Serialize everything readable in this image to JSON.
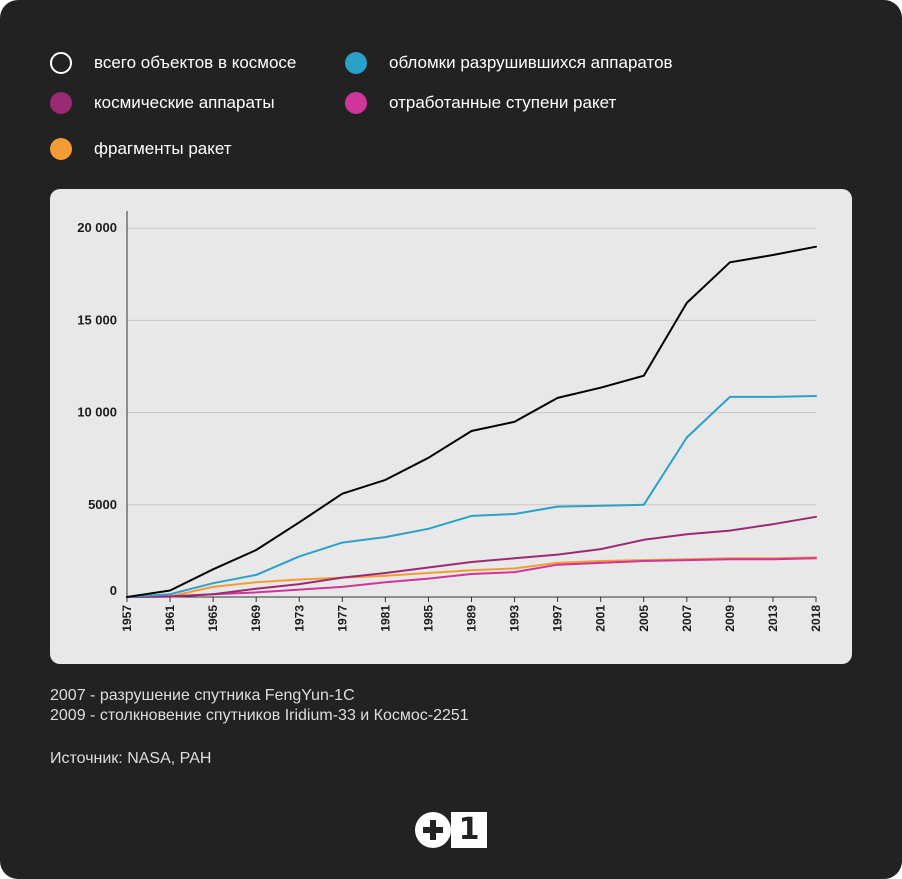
{
  "legend": [
    {
      "label": "всего объектов в космосе",
      "color": "#000000",
      "outline": true
    },
    {
      "label": "обломки разрушившихся аппаратов",
      "color": "#2aa1c8"
    },
    {
      "label": "космические аппараты",
      "color": "#9b2a74"
    },
    {
      "label": "отработанные ступени ракет",
      "color": "#d0359a"
    },
    {
      "label": "фрагменты ракет",
      "color": "#f39c36"
    }
  ],
  "notes": [
    "2007 - разрушение спутника FengYun-1C",
    "2009 - столкновение спутников Iridium-33 и Космос-2251"
  ],
  "source": "Источник: NASA, РАН",
  "logo": {
    "one": "1",
    "icon": "plus-circle-icon"
  },
  "chart_data": {
    "type": "line",
    "x": [
      "1957",
      "1961",
      "1965",
      "1969",
      "1973",
      "1977",
      "1981",
      "1985",
      "1989",
      "1993",
      "1997",
      "2001",
      "2005",
      "2007",
      "2009",
      "2013",
      "2018"
    ],
    "ylim": [
      0,
      20500
    ],
    "yticks": [
      0,
      5000,
      10000,
      15000,
      20000
    ],
    "ytick_labels": [
      "0",
      "5000",
      "10 000",
      "15 000",
      "20 000"
    ],
    "grid": true,
    "legend_placement": "top-left",
    "series": [
      {
        "name": "всего объектов в космосе",
        "color": "#000000",
        "values": [
          0,
          350,
          1500,
          2550,
          4050,
          5600,
          6350,
          7550,
          9000,
          9500,
          10800,
          11350,
          12000,
          15950,
          18150,
          18550,
          19000
        ]
      },
      {
        "name": "обломки разрушившихся аппаратов",
        "color": "#2aa1c8",
        "values": [
          0,
          150,
          750,
          1200,
          2200,
          2950,
          3250,
          3700,
          4400,
          4500,
          4900,
          4950,
          5000,
          8650,
          10850,
          10850,
          10900
        ]
      },
      {
        "name": "космические аппараты",
        "color": "#9b2a74",
        "values": [
          0,
          20,
          150,
          450,
          700,
          1050,
          1300,
          1600,
          1900,
          2100,
          2300,
          2600,
          3100,
          3400,
          3600,
          3950,
          4350
        ]
      },
      {
        "name": "отработанные ступени ракет",
        "color": "#d0359a",
        "values": [
          0,
          30,
          150,
          250,
          400,
          550,
          800,
          1000,
          1250,
          1350,
          1750,
          1850,
          1950,
          2000,
          2050,
          2050,
          2100
        ]
      },
      {
        "name": "фрагменты ракет",
        "color": "#f39c36",
        "values": [
          0,
          30,
          550,
          800,
          950,
          1050,
          1150,
          1300,
          1450,
          1550,
          1850,
          1950,
          2000,
          2050,
          2100,
          2100,
          2150
        ]
      }
    ]
  }
}
